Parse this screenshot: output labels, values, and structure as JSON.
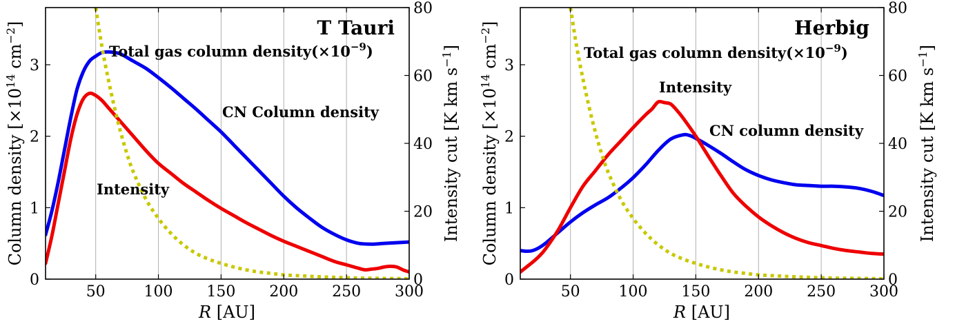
{
  "chart_data": [
    {
      "type": "line",
      "title": "T Tauri",
      "xlabel_italic": "R",
      "xlabel_unit": " [AU]",
      "ylabel_left_prefix": "Column density [×10",
      "ylabel_left_exp1": "14",
      "ylabel_left_mid": " cm",
      "ylabel_left_exp2": "−2",
      "ylabel_left_suffix": "]",
      "ylabel_right_prefix": "Intensity cut [K km s",
      "ylabel_right_exp": "−1",
      "ylabel_right_suffix": "]",
      "xlim": [
        10,
        300
      ],
      "ylim_left": [
        0,
        3.8
      ],
      "ylim_right": [
        0,
        80
      ],
      "xticks": [
        50,
        100,
        150,
        200,
        250,
        300
      ],
      "yticks_left": [
        0,
        1,
        2,
        3
      ],
      "yticks_right": [
        0,
        20,
        40,
        60,
        80
      ],
      "grid": "vertical",
      "series": [
        {
          "name": "CN Column density",
          "axis": "left",
          "color": "#0000ee",
          "style": "solid",
          "x": [
            10,
            15,
            20,
            25,
            30,
            35,
            40,
            45,
            50,
            55,
            60,
            65,
            70,
            80,
            90,
            100,
            110,
            120,
            130,
            140,
            150,
            160,
            170,
            180,
            190,
            200,
            210,
            220,
            230,
            240,
            250,
            260,
            270,
            280,
            290,
            300
          ],
          "y": [
            0.62,
            0.95,
            1.35,
            1.8,
            2.25,
            2.65,
            2.9,
            3.05,
            3.12,
            3.17,
            3.18,
            3.17,
            3.15,
            3.05,
            2.95,
            2.82,
            2.68,
            2.53,
            2.38,
            2.22,
            2.06,
            1.88,
            1.7,
            1.52,
            1.34,
            1.16,
            1.0,
            0.86,
            0.73,
            0.63,
            0.55,
            0.5,
            0.49,
            0.5,
            0.51,
            0.52
          ]
        },
        {
          "name": "Intensity",
          "axis": "left",
          "color": "#ee0000",
          "style": "solid",
          "x": [
            10,
            15,
            20,
            25,
            30,
            35,
            40,
            45,
            50,
            55,
            60,
            70,
            80,
            90,
            100,
            110,
            120,
            130,
            140,
            150,
            160,
            170,
            180,
            190,
            200,
            210,
            220,
            230,
            240,
            250,
            260,
            265,
            270,
            275,
            280,
            285,
            290,
            295,
            300
          ],
          "y": [
            0.22,
            0.6,
            1.05,
            1.5,
            1.95,
            2.3,
            2.52,
            2.6,
            2.57,
            2.5,
            2.4,
            2.2,
            2.0,
            1.8,
            1.62,
            1.48,
            1.34,
            1.22,
            1.1,
            0.99,
            0.89,
            0.79,
            0.7,
            0.61,
            0.53,
            0.46,
            0.39,
            0.32,
            0.25,
            0.2,
            0.15,
            0.13,
            0.14,
            0.15,
            0.17,
            0.18,
            0.17,
            0.13,
            0.1
          ]
        },
        {
          "name": "Total gas column density(×10−9)",
          "axis": "left",
          "color": "#c8c800",
          "style": "dotted",
          "x": [
            50,
            55,
            60,
            65,
            70,
            75,
            80,
            90,
            100,
            110,
            120,
            130,
            140,
            150,
            160,
            170,
            180,
            190,
            200,
            220,
            240,
            260,
            280,
            300
          ],
          "y": [
            3.8,
            3.25,
            2.8,
            2.4,
            2.05,
            1.75,
            1.5,
            1.12,
            0.85,
            0.64,
            0.48,
            0.36,
            0.28,
            0.22,
            0.17,
            0.13,
            0.1,
            0.08,
            0.06,
            0.04,
            0.025,
            0.015,
            0.01,
            0.005
          ]
        }
      ],
      "annotations": [
        {
          "text": "Total gas column density(×10",
          "sup": "−9",
          "tail": ")",
          "color": "#c8c800"
        },
        {
          "text": "CN Column density",
          "color": "#0000ee"
        },
        {
          "text": "Intensity",
          "color": "#ee0000"
        }
      ]
    },
    {
      "type": "line",
      "title": "Herbig",
      "xlabel_italic": "R",
      "xlabel_unit": " [AU]",
      "ylabel_left_prefix": "Column density [×10",
      "ylabel_left_exp1": "14",
      "ylabel_left_mid": " cm",
      "ylabel_left_exp2": "−2",
      "ylabel_left_suffix": "]",
      "ylabel_right_prefix": "Intensity cut [K km s",
      "ylabel_right_exp": "−1",
      "ylabel_right_suffix": "]",
      "xlim": [
        10,
        300
      ],
      "ylim_left": [
        0,
        3.8
      ],
      "ylim_right": [
        0,
        80
      ],
      "xticks": [
        50,
        100,
        150,
        200,
        250,
        300
      ],
      "yticks_left": [
        0,
        1,
        2,
        3
      ],
      "yticks_right": [
        0,
        20,
        40,
        60,
        80
      ],
      "grid": "vertical",
      "series": [
        {
          "name": "CN column density",
          "axis": "left",
          "color": "#0000ee",
          "style": "solid",
          "x": [
            10,
            15,
            20,
            25,
            30,
            40,
            50,
            60,
            70,
            80,
            90,
            100,
            110,
            120,
            130,
            140,
            145,
            150,
            160,
            170,
            180,
            190,
            200,
            210,
            220,
            230,
            240,
            250,
            260,
            270,
            280,
            290,
            300
          ],
          "y": [
            0.4,
            0.39,
            0.4,
            0.44,
            0.5,
            0.65,
            0.8,
            0.93,
            1.04,
            1.14,
            1.27,
            1.42,
            1.6,
            1.8,
            1.96,
            2.02,
            2.01,
            1.97,
            1.87,
            1.76,
            1.64,
            1.53,
            1.45,
            1.39,
            1.35,
            1.32,
            1.31,
            1.3,
            1.3,
            1.29,
            1.27,
            1.23,
            1.17
          ]
        },
        {
          "name": "Intensity",
          "axis": "left",
          "color": "#ee0000",
          "style": "solid",
          "x": [
            10,
            15,
            20,
            25,
            30,
            40,
            50,
            60,
            70,
            80,
            90,
            100,
            110,
            115,
            120,
            125,
            130,
            135,
            140,
            150,
            160,
            170,
            180,
            190,
            200,
            210,
            220,
            230,
            240,
            250,
            260,
            270,
            280,
            290,
            300
          ],
          "y": [
            0.1,
            0.17,
            0.24,
            0.32,
            0.42,
            0.68,
            1.0,
            1.3,
            1.52,
            1.74,
            1.93,
            2.12,
            2.3,
            2.38,
            2.48,
            2.47,
            2.45,
            2.36,
            2.25,
            2.0,
            1.72,
            1.45,
            1.2,
            1.02,
            0.87,
            0.75,
            0.65,
            0.57,
            0.51,
            0.47,
            0.43,
            0.4,
            0.38,
            0.36,
            0.35
          ]
        },
        {
          "name": "Total gas column density(×10−9)",
          "axis": "left",
          "color": "#c8c800",
          "style": "dotted",
          "x": [
            50,
            55,
            60,
            65,
            70,
            75,
            80,
            90,
            100,
            110,
            120,
            130,
            140,
            150,
            160,
            170,
            180,
            190,
            200,
            220,
            240,
            260,
            280,
            300
          ],
          "y": [
            3.8,
            3.25,
            2.8,
            2.4,
            2.05,
            1.75,
            1.5,
            1.12,
            0.85,
            0.64,
            0.48,
            0.36,
            0.28,
            0.22,
            0.17,
            0.13,
            0.1,
            0.08,
            0.06,
            0.04,
            0.025,
            0.015,
            0.01,
            0.005
          ]
        }
      ],
      "annotations": [
        {
          "text": "Total gas column density(×10",
          "sup": "−9",
          "tail": ")",
          "color": "#c8c800"
        },
        {
          "text": "CN column density",
          "color": "#0000ee"
        },
        {
          "text": "Intensity",
          "color": "#ee0000"
        }
      ]
    }
  ]
}
